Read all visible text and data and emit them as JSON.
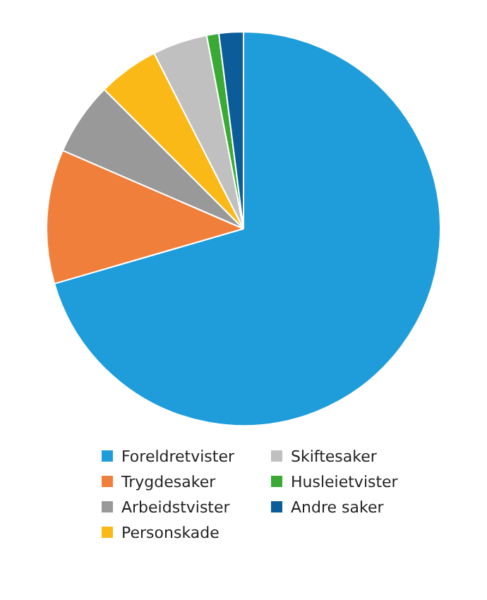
{
  "chart_data": {
    "type": "pie",
    "categories": [
      "Foreldretvister",
      "Trygdesaker",
      "Arbeidstvister",
      "Personskade",
      "Skiftesaker",
      "Husleietvister",
      "Andre saker"
    ],
    "values": [
      70.5,
      11,
      6,
      5,
      4.5,
      1,
      2
    ],
    "colors": [
      "#1f9ddb",
      "#f07f3c",
      "#999999",
      "#fbb917",
      "#c0c0c0",
      "#3aaa35",
      "#0b5c99"
    ],
    "legend": "bottom"
  }
}
